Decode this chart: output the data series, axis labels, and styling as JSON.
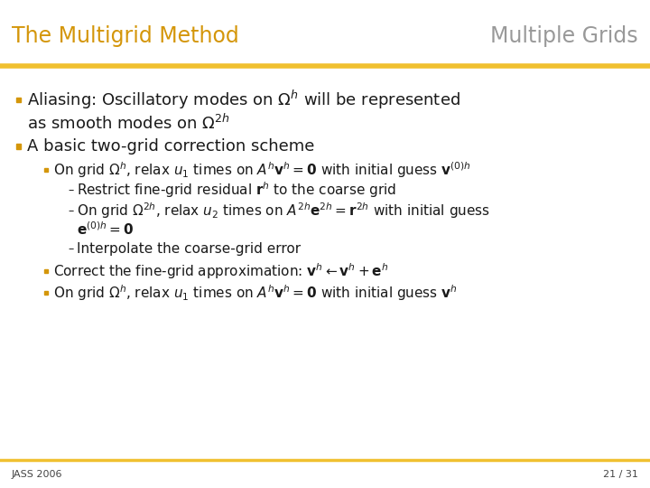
{
  "bg_color": "#ffffff",
  "title_left": "The Multigrid Method",
  "title_right": "Multiple Grids",
  "title_left_color": "#d4960a",
  "title_right_color": "#999999",
  "separator_color": "#f0c030",
  "footer_text_left": "JASS 2006",
  "footer_text_right": "21 / 31",
  "footer_color": "#444444",
  "text_color": "#1a1a1a",
  "bullet_color": "#d4960a"
}
